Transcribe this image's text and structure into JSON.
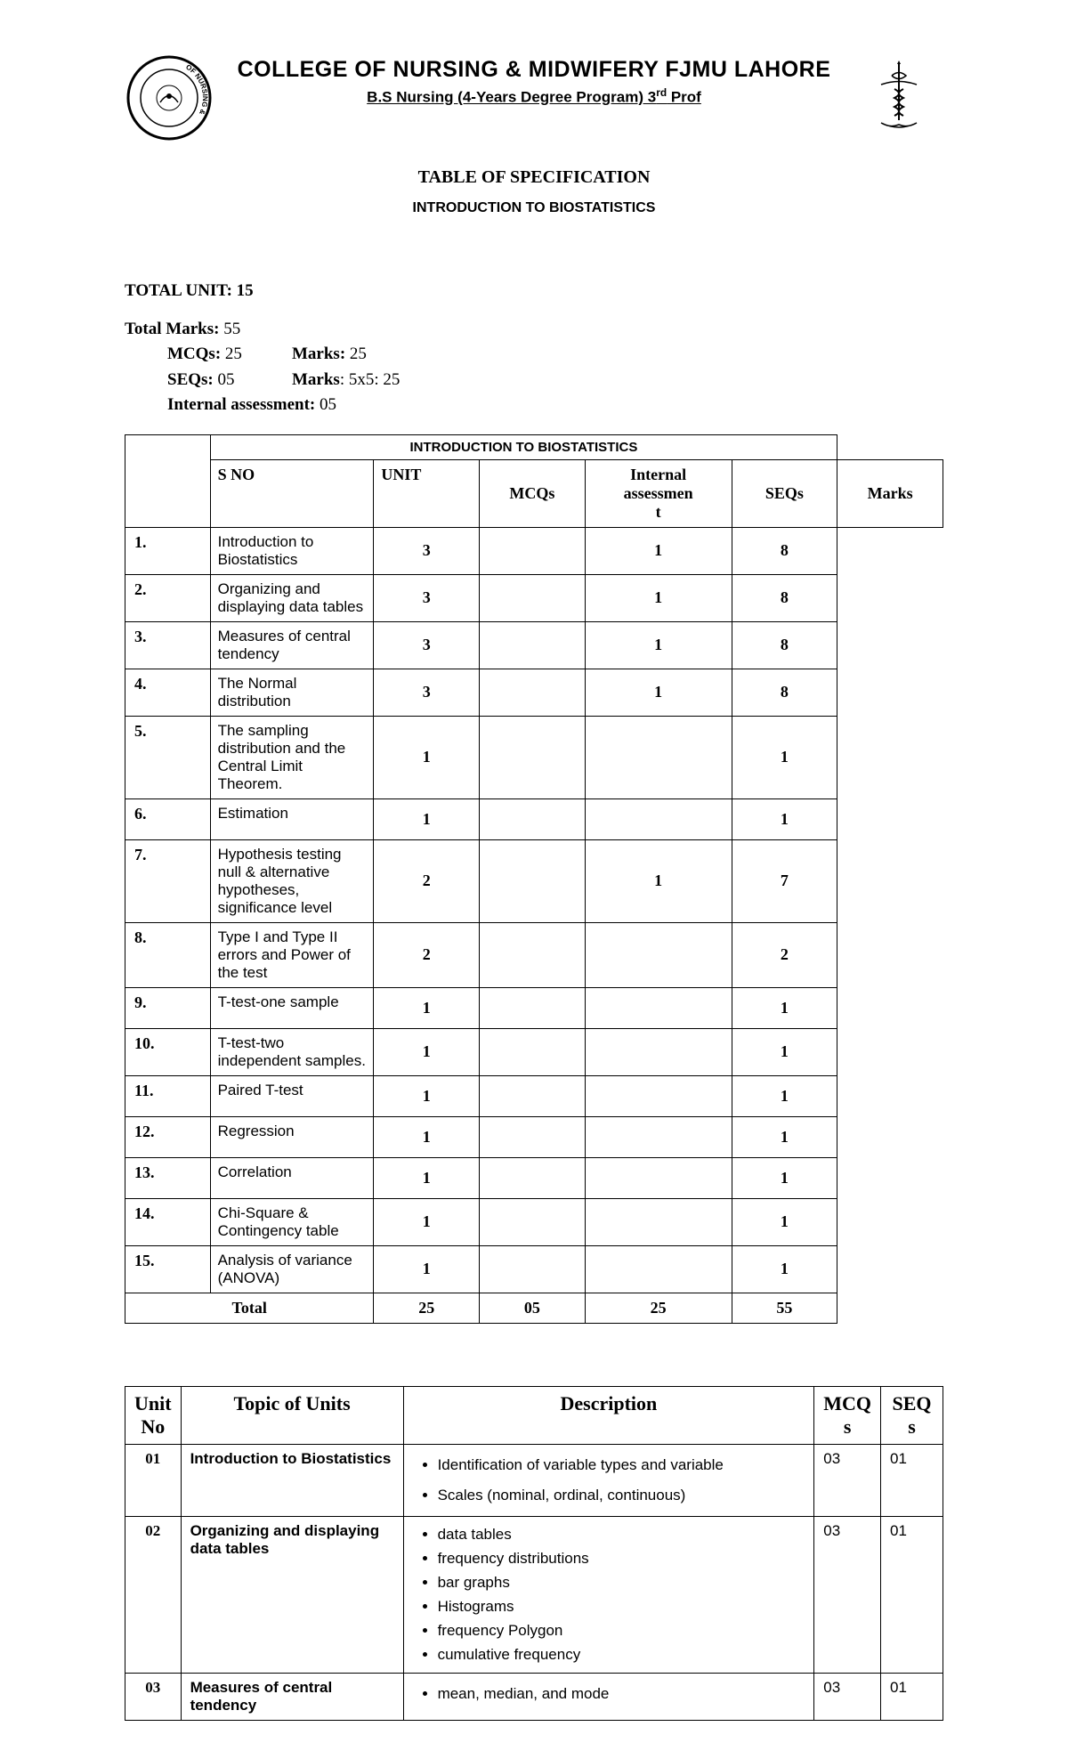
{
  "header": {
    "college": "COLLEGE OF NURSING & MIDWIFERY FJMU LAHORE",
    "program": "B.S Nursing (4-Years Degree Program) 3",
    "program_suffix": "rd",
    "program_tail": " Prof",
    "section": "TABLE OF SPECIFICATION",
    "course": "INTRODUCTION TO BIOSTATISTICS"
  },
  "meta": {
    "total_unit_label": "TOTAL UNIT:",
    "total_unit": "15",
    "total_marks_label": "Total Marks:",
    "total_marks": "55",
    "mcqs_label": "MCQs:",
    "mcqs_count": "25",
    "mcqs_marks_label": "Marks:",
    "mcqs_marks": "25",
    "seqs_label": "SEQs:",
    "seqs_count": "05",
    "seqs_marks_label": "Marks",
    "seqs_marks": "5x5: 25",
    "internal_label": "Internal assessment:",
    "internal": "05"
  },
  "spec_table": {
    "banner": "INTRODUCTION TO BIOSTATISTICS",
    "headers": {
      "sno": "S NO",
      "unit": "UNIT",
      "mcqs": "MCQs",
      "internal": "Internal assessmen t",
      "seqs": "SEQs",
      "marks": "Marks"
    },
    "rows": [
      {
        "sno": "1.",
        "unit": "Introduction to Biostatistics",
        "mcqs": "3",
        "internal": "",
        "seqs": "1",
        "marks": "8"
      },
      {
        "sno": "2.",
        "unit": "Organizing and displaying data tables",
        "mcqs": "3",
        "internal": "",
        "seqs": "1",
        "marks": "8"
      },
      {
        "sno": "3.",
        "unit": "Measures of central tendency",
        "mcqs": "3",
        "internal": "",
        "seqs": "1",
        "marks": "8"
      },
      {
        "sno": "4.",
        "unit": "The Normal distribution",
        "mcqs": "3",
        "internal": "",
        "seqs": "1",
        "marks": "8"
      },
      {
        "sno": "5.",
        "unit": "The sampling distribution and the Central Limit Theorem.",
        "mcqs": "1",
        "internal": "",
        "seqs": "",
        "marks": "1"
      },
      {
        "sno": "6.",
        "unit": "Estimation",
        "mcqs": "1",
        "internal": "",
        "seqs": "",
        "marks": "1"
      },
      {
        "sno": "7.",
        "unit": "Hypothesis testing null & alternative hypotheses, significance level",
        "mcqs": "2",
        "internal": "",
        "seqs": "1",
        "marks": "7"
      },
      {
        "sno": "8.",
        "unit": "Type I and Type II errors and Power of the test",
        "mcqs": "2",
        "internal": "",
        "seqs": "",
        "marks": "2"
      },
      {
        "sno": "9.",
        "unit": "T-test-one sample",
        "mcqs": "1",
        "internal": "",
        "seqs": "",
        "marks": "1"
      },
      {
        "sno": "10.",
        "unit": "T-test-two independent samples.",
        "mcqs": "1",
        "internal": "",
        "seqs": "",
        "marks": "1"
      },
      {
        "sno": "11.",
        "unit": "Paired T-test",
        "mcqs": "1",
        "internal": "",
        "seqs": "",
        "marks": "1"
      },
      {
        "sno": "12.",
        "unit": "Regression",
        "mcqs": "1",
        "internal": "",
        "seqs": "",
        "marks": "1"
      },
      {
        "sno": "13.",
        "unit": "Correlation",
        "mcqs": "1",
        "internal": "",
        "seqs": "",
        "marks": "1"
      },
      {
        "sno": "14.",
        "unit": "Chi-Square & Contingency table",
        "mcqs": "1",
        "internal": "",
        "seqs": "",
        "marks": "1"
      },
      {
        "sno": "15.",
        "unit": "Analysis of variance (ANOVA)",
        "mcqs": "1",
        "internal": "",
        "seqs": "",
        "marks": "1"
      }
    ],
    "total": {
      "label": "Total",
      "mcqs": "25",
      "internal": "05",
      "seqs": "25",
      "marks": "55"
    }
  },
  "topics_table": {
    "headers": {
      "unit_no": "Unit No",
      "topic": "Topic of Units",
      "desc": "Description",
      "mcq": "MCQ s",
      "seq": "SEQ s"
    },
    "rows": [
      {
        "no": "01",
        "topic": "Introduction to Biostatistics",
        "items": [
          "Identification of variable types and variable",
          "Scales (nominal, ordinal, continuous)"
        ],
        "wide": true,
        "mcq": "03",
        "seq": "01"
      },
      {
        "no": "02",
        "topic": "Organizing and displaying data tables",
        "items": [
          "data tables",
          "frequency distributions",
          "bar graphs",
          "Histograms",
          "frequency Polygon",
          "cumulative frequency"
        ],
        "wide": false,
        "mcq": "03",
        "seq": "01"
      },
      {
        "no": "03",
        "topic": "Measures of central tendency",
        "items": [
          "mean, median, and mode"
        ],
        "wide": true,
        "mcq": "03",
        "seq": "01"
      }
    ]
  }
}
